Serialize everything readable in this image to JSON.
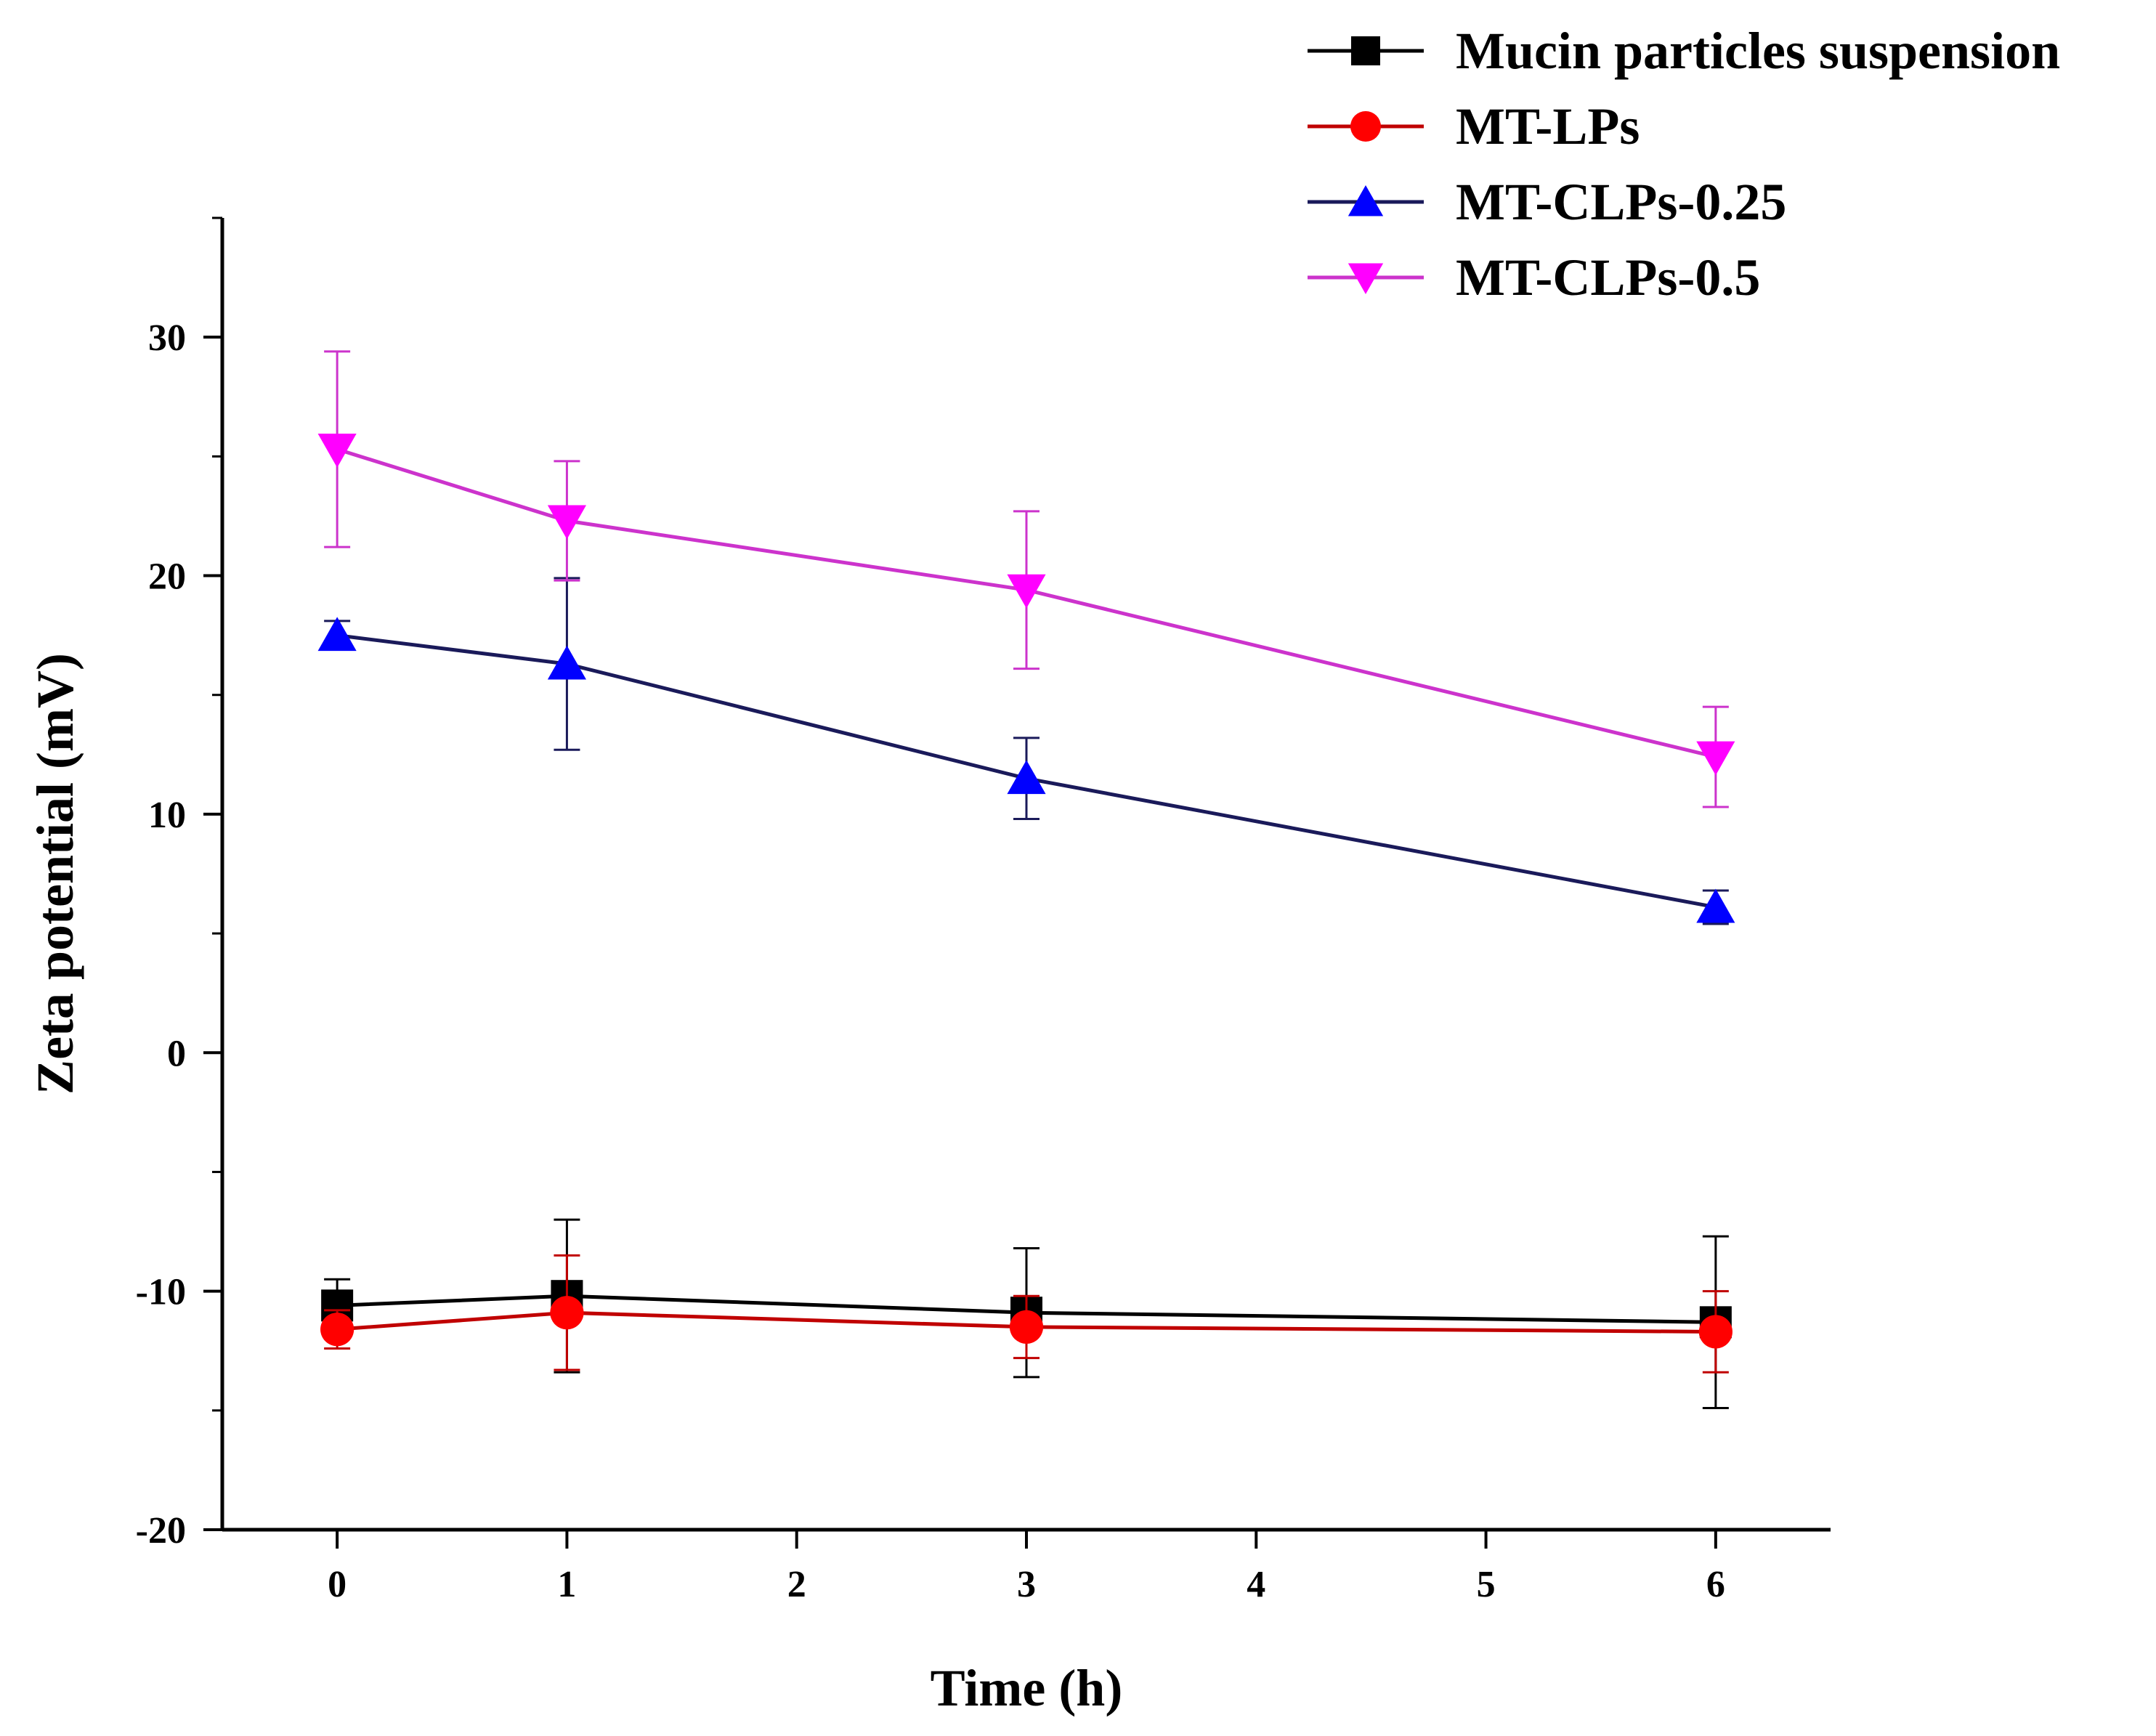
{
  "chart_data": {
    "type": "line",
    "title": "",
    "xlabel": "Time (h)",
    "ylabel": "Zeta potential (mV)",
    "xlim": [
      -0.5,
      6.5
    ],
    "ylim": [
      -20,
      35
    ],
    "xticks": [
      0,
      1,
      2,
      3,
      4,
      5,
      6
    ],
    "yticks": [
      -20,
      -10,
      0,
      10,
      20,
      30
    ],
    "grid": false,
    "legend_position": "top-right",
    "series": [
      {
        "name": "Mucin particles suspension",
        "color": "#000000",
        "line_color": "#000000",
        "marker": "square",
        "x": [
          0,
          1,
          3,
          6
        ],
        "y": [
          -10.6,
          -10.2,
          -10.9,
          -11.3
        ],
        "err": [
          1.1,
          3.2,
          2.7,
          3.6
        ]
      },
      {
        "name": "MT-LPs",
        "color": "#ff0000",
        "line_color": "#c00000",
        "marker": "circle",
        "x": [
          0,
          1,
          3,
          6
        ],
        "y": [
          -11.6,
          -10.9,
          -11.5,
          -11.7
        ],
        "err": [
          0.8,
          2.4,
          1.3,
          1.7
        ]
      },
      {
        "name": "MT-CLPs-0.25",
        "color": "#0000ff",
        "line_color": "#1a1a5a",
        "marker": "triangle-up",
        "x": [
          0,
          1,
          3,
          6
        ],
        "y": [
          17.5,
          16.3,
          11.5,
          6.1
        ],
        "err": [
          0.6,
          3.6,
          1.7,
          0.7
        ]
      },
      {
        "name": "MT-CLPs-0.5",
        "color": "#ff00ff",
        "line_color": "#cc33cc",
        "marker": "triangle-down",
        "x": [
          0,
          1,
          3,
          6
        ],
        "y": [
          25.3,
          22.3,
          19.4,
          12.4
        ],
        "err": [
          4.1,
          2.5,
          3.3,
          2.1
        ]
      }
    ]
  }
}
